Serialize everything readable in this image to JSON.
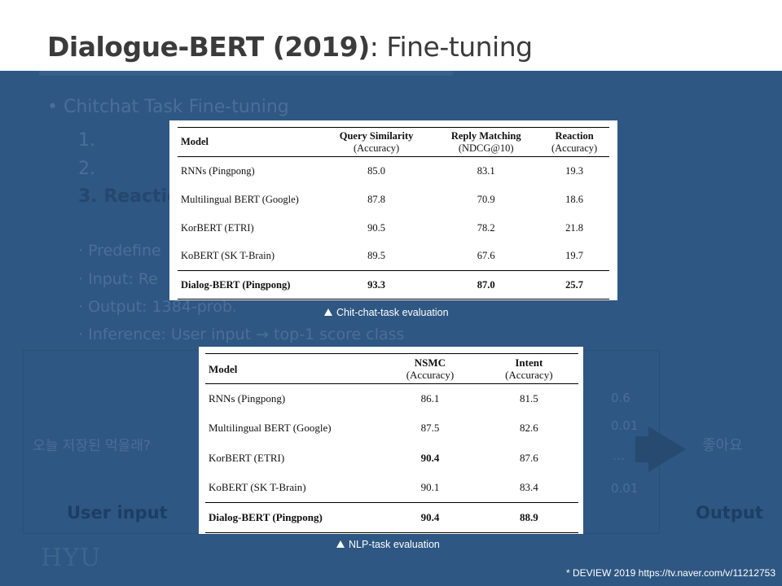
{
  "slide": {
    "title_bold": "Dialogue-BERT (2019)",
    "title_rest": ": Fine-tuning"
  },
  "background": {
    "bullet": "Chitchat Task Fine-tuning",
    "items": [
      "1.",
      "2.",
      "3.  Reaction"
    ],
    "sub_items": [
      "Predefine",
      "Input: Re",
      "Output: 1384-prob.",
      "Inference: User input → top-1 score class"
    ],
    "korean_input": "오늘 저장된 먹을래?",
    "scores": [
      "0.6",
      "0.01",
      "…",
      "0.01"
    ],
    "korean_output": "좋아요",
    "user_input_label": "User input",
    "output_label": "Output",
    "logo_text": "HYU"
  },
  "table1": {
    "headers": [
      {
        "title": "Model",
        "sub": ""
      },
      {
        "title": "Query Similarity",
        "sub": "(Accuracy)"
      },
      {
        "title": "Reply Matching",
        "sub": "(NDCG@10)"
      },
      {
        "title": "Reaction",
        "sub": "(Accuracy)"
      }
    ],
    "rows": [
      [
        "RNNs (Pingpong)",
        "85.0",
        "83.1",
        "19.3"
      ],
      [
        "Multilingual BERT (Google)",
        "87.8",
        "70.9",
        "18.6"
      ],
      [
        "KorBERT (ETRI)",
        "90.5",
        "78.2",
        "21.8"
      ],
      [
        "KoBERT (SK T-Brain)",
        "89.5",
        "67.6",
        "19.7"
      ],
      [
        "Dialog-BERT (Pingpong)",
        "93.3",
        "87.0",
        "25.7"
      ]
    ],
    "caption": "Chit-chat-task evaluation"
  },
  "table2": {
    "headers": [
      {
        "title": "Model",
        "sub": ""
      },
      {
        "title": "NSMC",
        "sub": "(Accuracy)"
      },
      {
        "title": "Intent",
        "sub": "(Accuracy)"
      }
    ],
    "rows": [
      [
        "RNNs (Pingpong)",
        "86.1",
        "81.5"
      ],
      [
        "Multilingual BERT (Google)",
        "87.5",
        "82.6"
      ],
      [
        "KorBERT (ETRI)",
        "90.4",
        "87.6"
      ],
      [
        "KoBERT (SK T-Brain)",
        "90.1",
        "83.4"
      ],
      [
        "Dialog-BERT (Pingpong)",
        "90.4",
        "88.9"
      ]
    ],
    "caption": "NLP-task evaluation"
  },
  "footnote": "* DEVIEW 2019  https://tv.naver.com/v/11212753",
  "colors": {
    "slide_background": "#2e5783",
    "header_background": "#ffffff",
    "title_text": "#3b3b3b"
  }
}
